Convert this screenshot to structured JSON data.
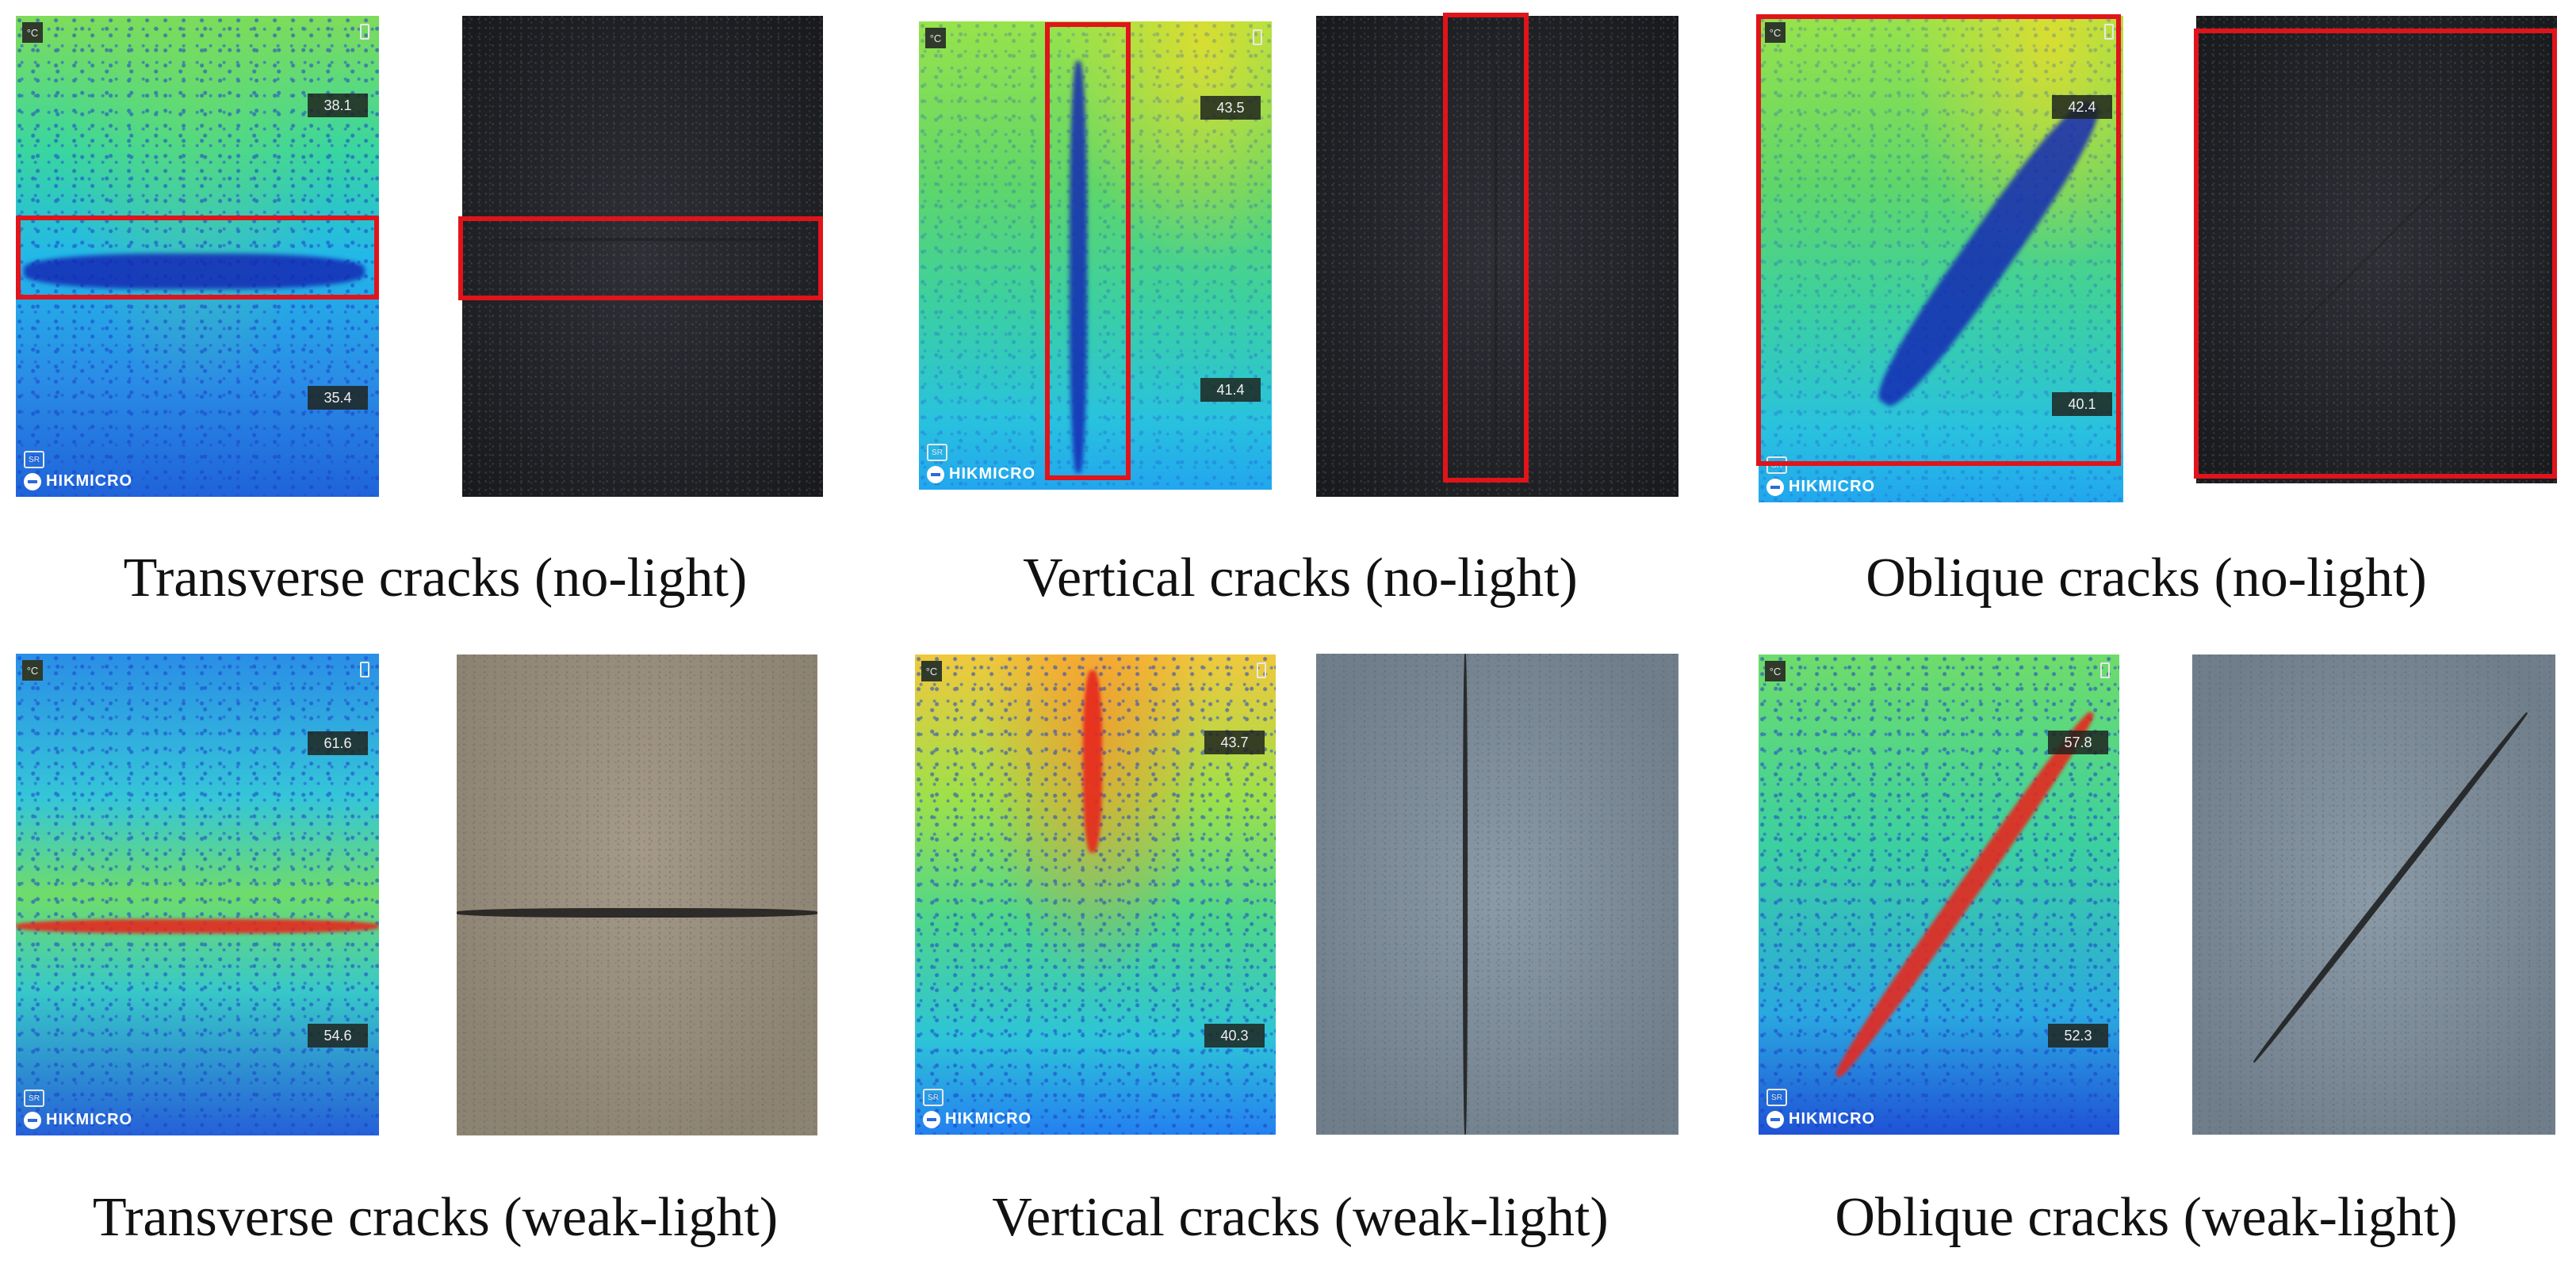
{
  "thermal_unit": "°C",
  "mode_badge": "SR",
  "brand_logo_text": "HIKMICRO",
  "temperature_readouts": {
    "transverse_no_light": {
      "high": "38.1",
      "low": "35.4"
    },
    "vertical_no_light": {
      "high": "43.5",
      "low": "41.4"
    },
    "oblique_no_light": {
      "high": "42.4",
      "low": "40.1"
    },
    "transverse_weak_light": {
      "high": "61.6",
      "low": "54.6"
    },
    "vertical_weak_light": {
      "high": "43.7",
      "low": "40.3"
    },
    "oblique_weak_light": {
      "high": "57.8",
      "low": "52.3"
    }
  },
  "captions": {
    "transverse_no_light": "Transverse cracks (no-light)",
    "vertical_no_light": "Vertical cracks (no-light)",
    "oblique_no_light": "Oblique cracks (no-light)",
    "transverse_weak_light": "Transverse cracks (weak-light)",
    "vertical_weak_light": "Vertical cracks (weak-light)",
    "oblique_weak_light": "Oblique cracks (weak-light)"
  },
  "colors": {
    "roi_box": "#e0141a",
    "hot_crack": "#e6281e",
    "cold_crack": "#1428b4"
  }
}
